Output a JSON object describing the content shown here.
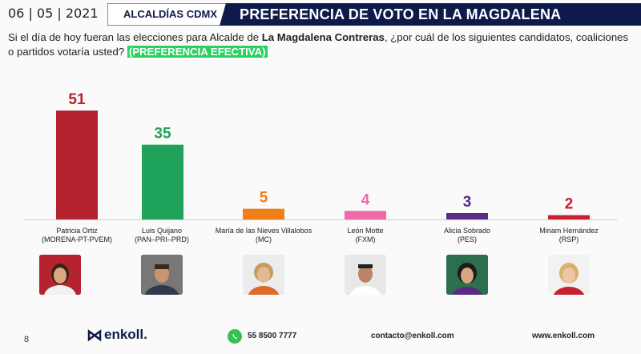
{
  "header": {
    "date": "06 | 05 | 2021",
    "section": "ALCALDÍAS CDMX",
    "title": "PREFERENCIA DE VOTO EN LA MAGDALENA CONTRERAS",
    "band_color": "#0e1a4a"
  },
  "question": {
    "part1": "Si el día de hoy fueran las elecciones para Alcalde de ",
    "bold": "La Magdalena Contreras",
    "part2": ", ¿por cuál de los siguientes candidatos, coaliciones o partidos votaría usted? ",
    "tag": "(PREFERENCIA EFECTIVA)"
  },
  "chart_data": {
    "type": "bar",
    "title": "",
    "xlabel": "",
    "ylabel": "",
    "ylim": [
      0,
      51
    ],
    "categories": [
      "Patricia Ortiz (MORENA-PT-PVEM)",
      "Luis Quijano (PAN–PRI–PRD)",
      "María de las Nieves Villalobos (MC)",
      "León Motte (FXM)",
      "Alicia Sobrado (PES)",
      "Miriam Hernández (RSP)"
    ],
    "values": [
      51,
      35,
      5,
      4,
      3,
      2
    ],
    "colors": [
      "#b5232e",
      "#1fa35a",
      "#f07f1a",
      "#ee6aa8",
      "#5b2a86",
      "#c8202f"
    ],
    "label_colors": [
      "#b5232e",
      "#1fa35a",
      "#f07f1a",
      "#ee6aa8",
      "#5b2a86",
      "#c8202f"
    ],
    "grid": false,
    "legend": "none"
  },
  "candidates": [
    {
      "name": "Patricia Ortiz",
      "party": "(MORENA-PT-PVEM)",
      "photo_icon": "woman-portrait-icon"
    },
    {
      "name": "Luis Quijano",
      "party": "(PAN–PRI–PRD)",
      "photo_icon": "man-portrait-icon"
    },
    {
      "name": "María de las Nieves Villalobos",
      "party": "(MC)",
      "photo_icon": "woman-portrait-icon"
    },
    {
      "name": "León Motte",
      "party": "(FXM)",
      "photo_icon": "man-portrait-icon"
    },
    {
      "name": "Alicia Sobrado",
      "party": "(PES)",
      "photo_icon": "woman-portrait-icon"
    },
    {
      "name": "Miriam Hernández",
      "party": "(RSP)",
      "photo_icon": "woman-portrait-icon"
    }
  ],
  "footer": {
    "page": "8",
    "logo_text": "enkoll.",
    "phone": "55 8500 7777",
    "email": "contacto@enkoll.com",
    "web": "www.enkoll.com",
    "whatsapp_icon": "whatsapp-icon"
  }
}
